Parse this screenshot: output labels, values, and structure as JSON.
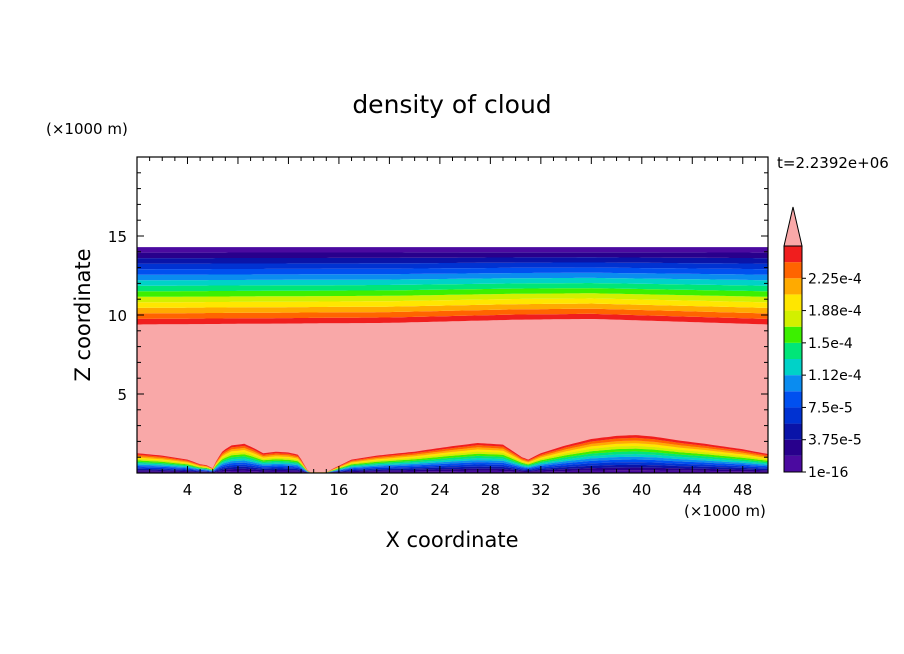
{
  "chart_data": {
    "type": "heatmap",
    "title": "density of cloud",
    "xlabel": "X coordinate",
    "ylabel": "Z coordinate",
    "x_unit": "(×1000 m)",
    "y_unit": "(×1000 m)",
    "time_label": "t=2.2392e+06",
    "xlim": [
      0,
      50
    ],
    "ylim": [
      0,
      20
    ],
    "x_ticks": [
      4,
      8,
      12,
      16,
      20,
      24,
      28,
      32,
      36,
      40,
      44,
      48
    ],
    "y_ticks": [
      5,
      10,
      15
    ],
    "colorbar": {
      "levels": [
        1e-16,
        1.875e-05,
        3.75e-05,
        5.625e-05,
        7.5e-05,
        9.375e-05,
        0.0001125,
        0.00013125,
        0.00015,
        0.00016875,
        0.0001875,
        0.00020625,
        0.000225,
        0.00024375
      ],
      "tick_labels": [
        "1e-16",
        "3.75e-5",
        "7.5e-5",
        "1.12e-4",
        "1.5e-4",
        "1.88e-4",
        "2.25e-4"
      ],
      "colors": [
        "#4b0aa0",
        "#28008c",
        "#0a14a8",
        "#0032d2",
        "#0050f0",
        "#0a8cf0",
        "#00d2c8",
        "#00e678",
        "#3cf000",
        "#d2f000",
        "#ffe600",
        "#ffaa00",
        "#ff6400",
        "#f01e1e"
      ],
      "over_color": "#f9a8a8",
      "extend": "max"
    },
    "upper_cloud": {
      "top_z": 14.3,
      "base_z_profile": {
        "x": [
          0,
          10,
          20,
          30,
          36,
          40,
          44,
          50
        ],
        "z": [
          9.4,
          9.45,
          9.5,
          9.7,
          9.75,
          9.65,
          9.55,
          9.4
        ]
      }
    },
    "surface_cloud_profile": {
      "x": [
        0,
        2,
        4,
        5,
        5.5,
        6,
        6.3,
        6.8,
        7.5,
        8.5,
        9.2,
        10,
        11,
        12,
        12.8,
        13.2,
        13.6,
        15,
        15.6,
        17,
        19,
        22,
        25,
        27,
        29,
        30.5,
        31,
        32,
        34,
        36,
        38,
        39.5,
        41,
        43,
        45,
        48,
        50
      ],
      "z": [
        1.25,
        1.1,
        0.85,
        0.55,
        0.5,
        0.3,
        0.8,
        1.4,
        1.75,
        1.85,
        1.6,
        1.25,
        1.35,
        1.3,
        1.15,
        0.6,
        0.05,
        0.05,
        0.3,
        0.85,
        1.1,
        1.35,
        1.7,
        1.9,
        1.8,
        1.0,
        0.85,
        1.25,
        1.75,
        2.15,
        2.35,
        2.4,
        2.3,
        2.05,
        1.85,
        1.5,
        1.2
      ]
    }
  }
}
